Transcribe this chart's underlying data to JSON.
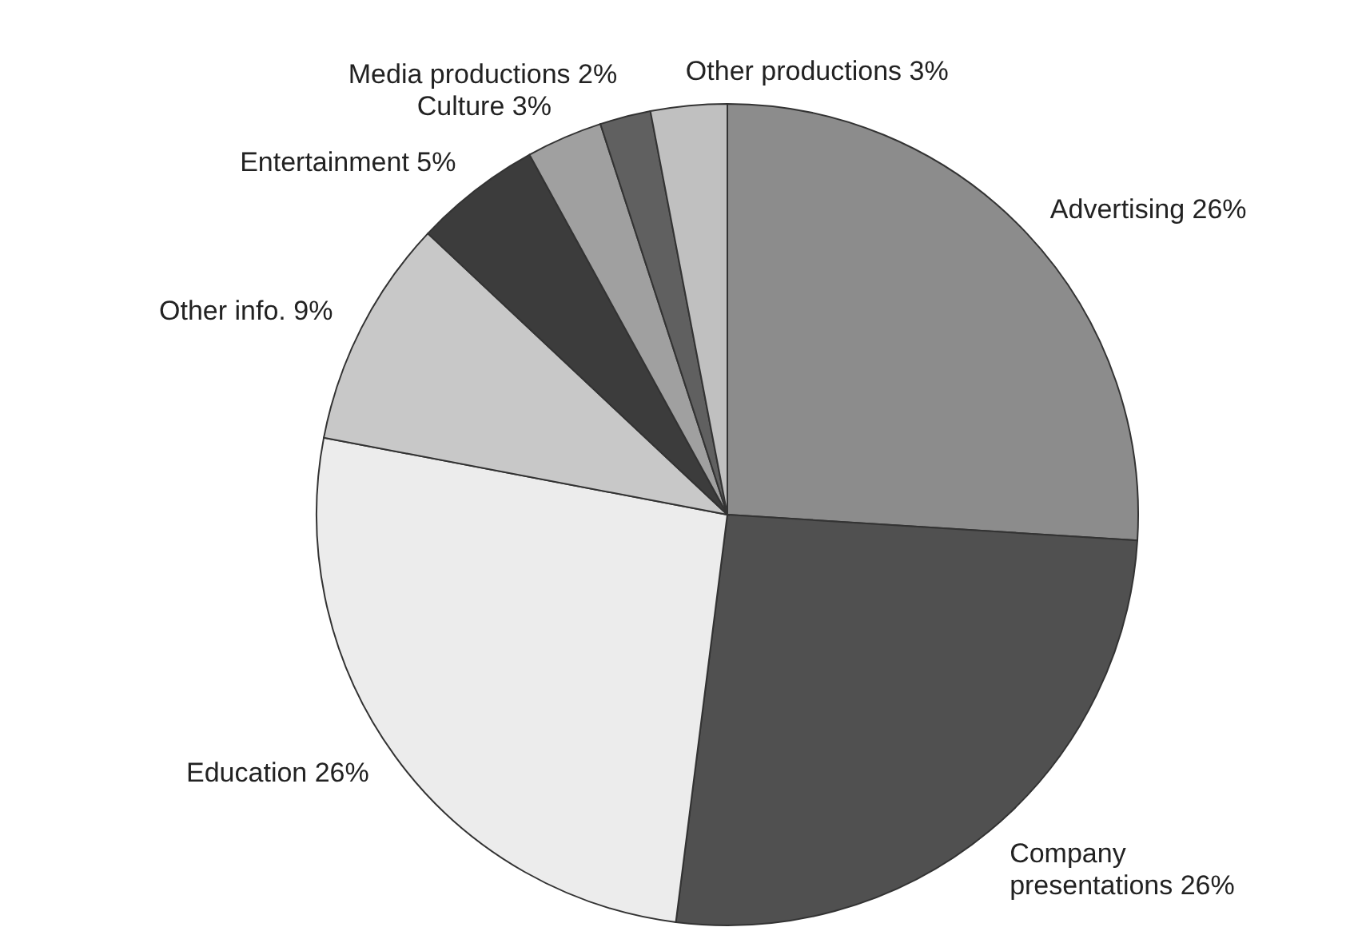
{
  "chart_data": {
    "type": "pie",
    "categories": [
      "Advertising",
      "Company presentations",
      "Education",
      "Other info.",
      "Entertainment",
      "Culture",
      "Media productions",
      "Other productions"
    ],
    "values": [
      26,
      26,
      26,
      9,
      5,
      3,
      2,
      3
    ],
    "value_labels": [
      "26%",
      "26%",
      "26%",
      "9%",
      "5%",
      "3%",
      "2%",
      "3%"
    ],
    "colors": [
      "#8c8c8c",
      "#505050",
      "#ececec",
      "#c8c8c8",
      "#3c3c3c",
      "#a0a0a0",
      "#606060",
      "#c0c0c0"
    ]
  }
}
